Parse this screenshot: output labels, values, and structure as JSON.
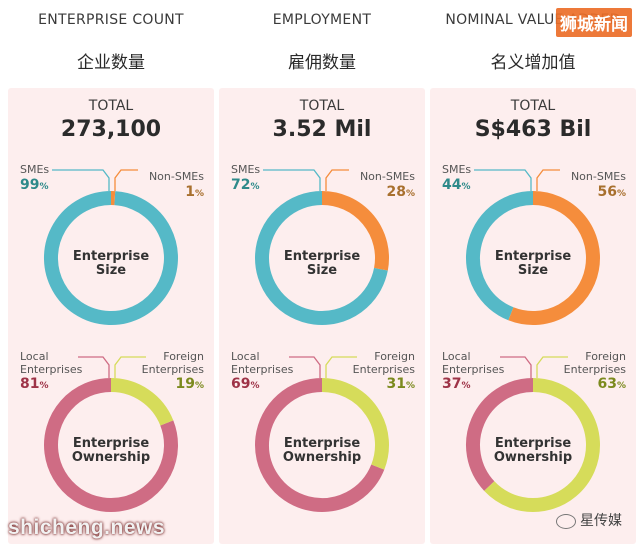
{
  "colors": {
    "teal": "#55b9c7",
    "orange": "#f58d3c",
    "pink": "#cf6c84",
    "yellow": "#d6dc5a",
    "panel": "#fdeeee",
    "tealText": "#2e8a8a",
    "orangeText": "#a8702e",
    "pinkText": "#9e3347",
    "yellowText": "#7c8a1e"
  },
  "metrics": [
    {
      "label": "ENTERPRISE COUNT",
      "label_cn": "企业数量",
      "total_label": "TOTAL",
      "total_value": "273,100",
      "size": {
        "left_label": "SMEs",
        "left_pct": "99",
        "right_label": "Non-SMEs",
        "right_pct": "1",
        "center_line1": "Enterprise",
        "center_line2": "Size"
      },
      "ownership": {
        "left_label_line1": "Local",
        "left_label_line2": "Enterprises",
        "left_pct": "81",
        "right_label_line1": "Foreign",
        "right_label_line2": "Enterprises",
        "right_pct": "19",
        "center_line1": "Enterprise",
        "center_line2": "Ownership"
      }
    },
    {
      "label": "EMPLOYMENT",
      "label_cn": "雇佣数量",
      "total_label": "TOTAL",
      "total_value": "3.52 Mil",
      "size": {
        "left_label": "SMEs",
        "left_pct": "72",
        "right_label": "Non-SMEs",
        "right_pct": "28",
        "center_line1": "Enterprise",
        "center_line2": "Size"
      },
      "ownership": {
        "left_label_line1": "Local",
        "left_label_line2": "Enterprises",
        "left_pct": "69",
        "right_label_line1": "Foreign",
        "right_label_line2": "Enterprises",
        "right_pct": "31",
        "center_line1": "Enterprise",
        "center_line2": "Ownership"
      }
    },
    {
      "label": "NOMINAL VALUE ADDED",
      "label_cn": "名义增加值",
      "total_label": "TOTAL",
      "total_value": "S$463 Bil",
      "size": {
        "left_label": "SMEs",
        "left_pct": "44",
        "right_label": "Non-SMEs",
        "right_pct": "56",
        "center_line1": "Enterprise",
        "center_line2": "Size"
      },
      "ownership": {
        "left_label_line1": "Local",
        "left_label_line2": "Enterprises",
        "left_pct": "37",
        "right_label_line1": "Foreign",
        "right_label_line2": "Enterprises",
        "right_pct": "63",
        "center_line1": "Enterprise",
        "center_line2": "Ownership"
      }
    }
  ],
  "pct_unit": "%",
  "watermarks": {
    "top_right": "狮城新闻",
    "bottom_left": "shicheng.news",
    "bottom_right": "星传媒"
  },
  "chart_data": [
    {
      "type": "pie",
      "title": "ENTERPRISE COUNT",
      "subtitle": "Enterprise Size",
      "categories": [
        "SMEs",
        "Non-SMEs"
      ],
      "values": [
        99,
        1
      ]
    },
    {
      "type": "pie",
      "title": "ENTERPRISE COUNT",
      "subtitle": "Enterprise Ownership",
      "categories": [
        "Local Enterprises",
        "Foreign Enterprises"
      ],
      "values": [
        81,
        19
      ]
    },
    {
      "type": "pie",
      "title": "EMPLOYMENT",
      "subtitle": "Enterprise Size",
      "categories": [
        "SMEs",
        "Non-SMEs"
      ],
      "values": [
        72,
        28
      ]
    },
    {
      "type": "pie",
      "title": "EMPLOYMENT",
      "subtitle": "Enterprise Ownership",
      "categories": [
        "Local Enterprises",
        "Foreign Enterprises"
      ],
      "values": [
        69,
        31
      ]
    },
    {
      "type": "pie",
      "title": "NOMINAL VALUE ADDED",
      "subtitle": "Enterprise Size",
      "categories": [
        "SMEs",
        "Non-SMEs"
      ],
      "values": [
        44,
        56
      ]
    },
    {
      "type": "pie",
      "title": "NOMINAL VALUE ADDED",
      "subtitle": "Enterprise Ownership",
      "categories": [
        "Local Enterprises",
        "Foreign Enterprises"
      ],
      "values": [
        37,
        63
      ]
    }
  ]
}
